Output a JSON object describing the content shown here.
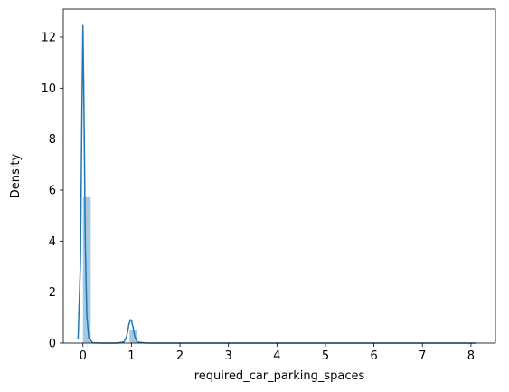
{
  "chart_data": {
    "type": "histogram+kde",
    "title": "",
    "xlabel": "required_car_parking_spaces",
    "ylabel": "Density",
    "xlim": [
      -0.405,
      8.505
    ],
    "ylim": [
      0,
      13.1
    ],
    "xticks": [
      0,
      1,
      2,
      3,
      4,
      5,
      6,
      7,
      8
    ],
    "yticks": [
      0,
      2,
      4,
      6,
      8,
      10,
      12
    ],
    "grid": false,
    "legend": "none",
    "histogram": {
      "bin_width": 0.16,
      "bins": [
        {
          "x0": 0.0,
          "x1": 0.16,
          "density": 5.72
        },
        {
          "x0": 0.96,
          "x1": 1.12,
          "density": 0.5
        }
      ],
      "color": "#1f77b4",
      "opacity": 0.4
    },
    "kde": {
      "color": "#1f77b4",
      "x": [
        -0.1,
        -0.05,
        -0.02,
        0.0,
        0.02,
        0.05,
        0.08,
        0.12,
        0.2,
        0.4,
        0.7,
        0.85,
        0.9,
        0.95,
        0.98,
        1.0,
        1.03,
        1.07,
        1.12,
        1.3,
        2.0,
        4.0,
        6.0,
        8.1
      ],
      "y": [
        0.15,
        3.2,
        9.2,
        12.45,
        9.5,
        3.8,
        1.1,
        0.2,
        0.01,
        0.0,
        0.0,
        0.05,
        0.25,
        0.75,
        0.92,
        0.9,
        0.65,
        0.25,
        0.04,
        0.0,
        0.0,
        0.0,
        0.0,
        0.0
      ]
    }
  }
}
